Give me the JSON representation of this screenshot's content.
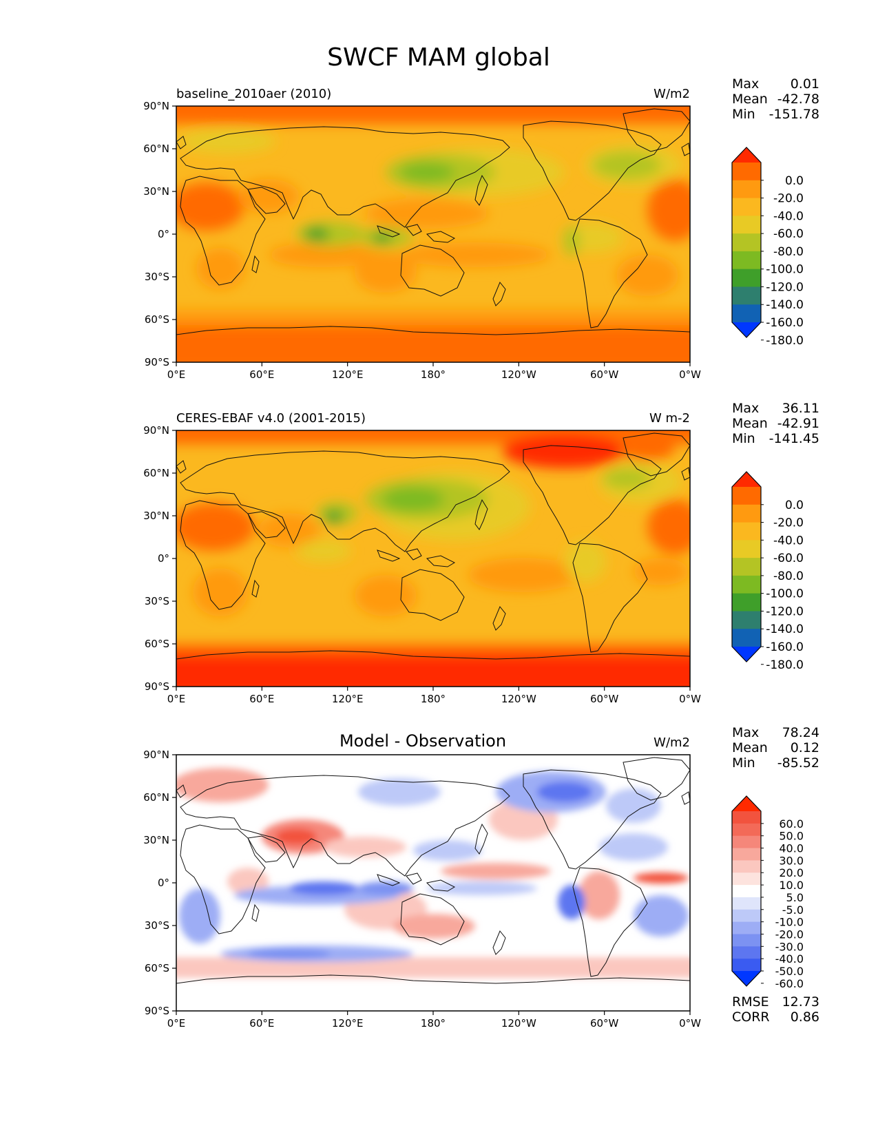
{
  "title": "SWCF MAM global",
  "lat_labels": [
    "90°N",
    "60°N",
    "30°N",
    "0°",
    "30°S",
    "60°S",
    "90°S"
  ],
  "lon_labels": [
    "0°E",
    "60°E",
    "120°E",
    "180°",
    "120°W",
    "60°W",
    "0°W"
  ],
  "panels": [
    {
      "id": "model",
      "label": "baseline_2010aer (2010)",
      "units": "W/m2",
      "stats": {
        "max_label": "Max",
        "max": "0.01",
        "mean_label": "Mean",
        "mean": "-42.78",
        "min_label": "Min",
        "min": "-151.78"
      },
      "colorbar": {
        "labels": [
          "0.0",
          "-20.0",
          "-40.0",
          "-60.0",
          "-80.0",
          "-100.0",
          "-120.0",
          "-140.0",
          "-160.0",
          "-180.0"
        ],
        "colors": [
          "#ff2a00",
          "#ff6a00",
          "#ff9a10",
          "#fbb81f",
          "#e8ca25",
          "#b4c424",
          "#7dba22",
          "#3f9f2a",
          "#2e7f6e",
          "#1162b4",
          "#0037ff"
        ]
      }
    },
    {
      "id": "obs",
      "label": "CERES-EBAF v4.0 (2001-2015)",
      "units": "W m-2",
      "stats": {
        "max_label": "Max",
        "max": "36.11",
        "mean_label": "Mean",
        "mean": "-42.91",
        "min_label": "Min",
        "min": "-141.45"
      },
      "colorbar": {
        "labels": [
          "0.0",
          "-20.0",
          "-40.0",
          "-60.0",
          "-80.0",
          "-100.0",
          "-120.0",
          "-140.0",
          "-160.0",
          "-180.0"
        ],
        "colors": [
          "#ff2a00",
          "#ff6a00",
          "#ff9a10",
          "#fbb81f",
          "#e8ca25",
          "#b4c424",
          "#7dba22",
          "#3f9f2a",
          "#2e7f6e",
          "#1162b4",
          "#0037ff"
        ]
      }
    },
    {
      "id": "diff",
      "title": "Model - Observation",
      "units": "W/m2",
      "stats": {
        "max_label": "Max",
        "max": "78.24",
        "mean_label": "Mean",
        "mean": "0.12",
        "min_label": "Min",
        "min": "-85.52"
      },
      "colorbar": {
        "labels": [
          "60.0",
          "50.0",
          "40.0",
          "30.0",
          "20.0",
          "10.0",
          "5.0",
          "-5.0",
          "-10.0",
          "-20.0",
          "-30.0",
          "-40.0",
          "-50.0",
          "-60.0"
        ],
        "colors": [
          "#ff2a00",
          "#f2533e",
          "#f36a58",
          "#f5877a",
          "#f8a89c",
          "#fbc7bf",
          "#fde3de",
          "#ffffff",
          "#dfe5fb",
          "#bdc9f8",
          "#9dadf5",
          "#7c92f2",
          "#5d76f0",
          "#3a5bf1",
          "#0037ff"
        ]
      },
      "rmse_label": "RMSE",
      "rmse": "12.73",
      "corr_label": "CORR",
      "corr": "0.86"
    }
  ]
}
